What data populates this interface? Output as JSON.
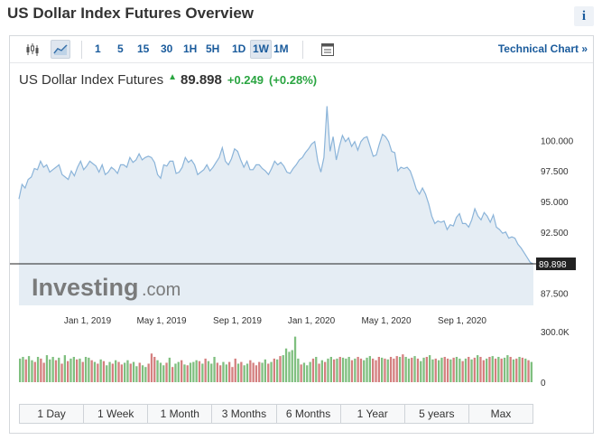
{
  "page": {
    "title": "US Dollar Index Futures Overview",
    "info_label": "i"
  },
  "toolbar": {
    "icons": [
      "candlestick-icon",
      "line-chart-icon",
      "table-icon"
    ],
    "intervals": [
      "1",
      "5",
      "15",
      "30",
      "1H",
      "5H",
      "1D",
      "1W",
      "1M"
    ],
    "active_interval": "1W",
    "technical_chart_label": "Technical Chart »"
  },
  "quote": {
    "name": "US Dollar Index Futures",
    "last": "89.898",
    "change": "+0.249",
    "change_pct": "(+0.28%)",
    "direction": "up"
  },
  "watermark": {
    "brand": "Investing",
    "suffix": ".com"
  },
  "colors": {
    "accent": "#1a5b9c",
    "up": "#2aa541",
    "line": "#8bb4d9",
    "area": "#e5edf4",
    "vol_up": "#7fbf7f",
    "vol_down": "#d47f7f"
  },
  "range_buttons": [
    "1 Day",
    "1 Week",
    "1 Month",
    "3 Months",
    "6 Months",
    "1 Year",
    "5 years",
    "Max"
  ],
  "chart_data": {
    "type": "area",
    "price": {
      "x_ticks": [
        "Jan 1, 2019",
        "May 1, 2019",
        "Sep 1, 2019",
        "Jan 1, 2020",
        "May 1, 2020",
        "Sep 1, 2020"
      ],
      "y_ticks": [
        "100.000",
        "97.500",
        "95.000",
        "92.500",
        "87.500"
      ],
      "ylim": [
        86.5,
        103.5
      ],
      "last_price_label": "89.898",
      "values": [
        95.2,
        96.4,
        96.1,
        96.8,
        97.0,
        97.7,
        97.6,
        98.3,
        97.8,
        98.0,
        97.4,
        97.6,
        97.8,
        98.0,
        97.2,
        97.0,
        96.8,
        97.5,
        97.1,
        97.8,
        98.3,
        97.6,
        97.9,
        98.3,
        98.1,
        97.9,
        97.4,
        98.0,
        97.2,
        97.4,
        97.8,
        97.6,
        97.3,
        98.0,
        98.0,
        97.8,
        98.6,
        98.2,
        98.4,
        98.9,
        98.4,
        98.6,
        98.7,
        98.6,
        98.2,
        97.2,
        96.9,
        98.0,
        97.9,
        98.3,
        98.3,
        97.3,
        97.4,
        97.8,
        98.6,
        98.2,
        98.4,
        98.0,
        97.2,
        97.4,
        97.6,
        98.0,
        97.5,
        97.8,
        98.2,
        98.6,
        99.4,
        98.3,
        98.0,
        98.5,
        99.3,
        99.1,
        98.4,
        97.8,
        98.3,
        97.6,
        97.6,
        98.0,
        98.0,
        97.7,
        97.5,
        97.2,
        97.7,
        98.3,
        98.0,
        98.2,
        97.9,
        97.4,
        97.3,
        97.7,
        98.0,
        98.4,
        98.6,
        99.0,
        99.3,
        99.7,
        99.9,
        98.3,
        97.4,
        98.6,
        102.8,
        99.1,
        100.3,
        98.4,
        99.5,
        100.4,
        99.9,
        100.2,
        99.5,
        99.9,
        99.2,
        99.9,
        100.2,
        100.3,
        99.5,
        98.7,
        98.8,
        99.7,
        100.5,
        100.3,
        99.9,
        99.1,
        99.0,
        97.5,
        97.8,
        97.7,
        97.8,
        97.5,
        96.8,
        96.0,
        95.6,
        96.1,
        95.6,
        94.8,
        93.8,
        93.2,
        93.4,
        93.3,
        93.4,
        92.7,
        93.1,
        93.0,
        93.7,
        94.0,
        93.2,
        93.2,
        92.9,
        93.5,
        94.4,
        93.8,
        93.5,
        94.1,
        93.8,
        93.3,
        93.9,
        92.9,
        92.7,
        92.4,
        92.5,
        92.0,
        92.1,
        92.0,
        91.5,
        91.2,
        90.8,
        90.4,
        90.0,
        89.9
      ]
    },
    "volume": {
      "y_ticks": [
        "300.0K",
        "0"
      ],
      "ylim": [
        0,
        300000
      ],
      "values": [
        140000,
        150000,
        135000,
        155000,
        130000,
        120000,
        150000,
        140000,
        115000,
        160000,
        135000,
        150000,
        130000,
        145000,
        110000,
        160000,
        125000,
        140000,
        150000,
        135000,
        140000,
        120000,
        150000,
        145000,
        130000,
        120000,
        110000,
        135000,
        125000,
        100000,
        120000,
        110000,
        130000,
        120000,
        105000,
        115000,
        130000,
        110000,
        120000,
        95000,
        115000,
        100000,
        90000,
        110000,
        170000,
        150000,
        130000,
        115000,
        100000,
        115000,
        145000,
        90000,
        110000,
        120000,
        130000,
        105000,
        100000,
        115000,
        120000,
        130000,
        125000,
        110000,
        140000,
        125000,
        110000,
        150000,
        115000,
        100000,
        120000,
        105000,
        120000,
        90000,
        140000,
        110000,
        120000,
        100000,
        110000,
        130000,
        115000,
        100000,
        120000,
        115000,
        135000,
        110000,
        120000,
        140000,
        135000,
        155000,
        160000,
        200000,
        180000,
        190000,
        270000,
        140000,
        105000,
        115000,
        100000,
        120000,
        140000,
        150000,
        110000,
        130000,
        120000,
        140000,
        150000,
        135000,
        140000,
        150000,
        145000,
        140000,
        150000,
        130000,
        140000,
        150000,
        140000,
        130000,
        145000,
        155000,
        140000,
        130000,
        150000,
        145000,
        140000,
        135000,
        150000,
        140000,
        155000,
        150000,
        165000,
        150000,
        140000,
        145000,
        155000,
        140000,
        125000,
        145000,
        150000,
        160000,
        135000,
        140000,
        130000,
        145000,
        150000,
        140000,
        135000,
        145000,
        150000,
        140000,
        125000,
        140000,
        150000,
        135000,
        145000,
        160000,
        150000,
        130000,
        140000,
        150000,
        155000,
        140000,
        150000,
        140000,
        145000,
        160000,
        150000,
        135000,
        140000,
        150000,
        145000,
        140000,
        130000,
        120000
      ],
      "up": [
        1,
        1,
        0,
        1,
        1,
        0,
        1,
        0,
        0,
        1,
        1,
        1,
        0,
        1,
        0,
        1,
        0,
        1,
        1,
        0,
        1,
        0,
        1,
        1,
        0,
        1,
        0,
        1,
        0,
        1,
        1,
        0,
        1,
        0,
        0,
        1,
        1,
        0,
        1,
        1,
        0,
        1,
        1,
        0,
        0,
        0,
        1,
        1,
        1,
        0,
        1,
        0,
        1,
        1,
        0,
        1,
        0,
        1,
        1,
        1,
        0,
        1,
        0,
        1,
        1,
        1,
        0,
        0,
        1,
        1,
        0,
        0,
        0,
        1,
        0,
        1,
        1,
        0,
        0,
        0,
        0,
        1,
        1,
        0,
        1,
        0,
        1,
        0,
        1,
        1,
        1,
        1,
        1,
        1,
        0,
        1,
        1,
        1,
        0,
        1,
        0,
        1,
        0,
        1,
        1,
        0,
        1,
        0,
        1,
        1,
        1,
        0,
        1,
        0,
        0,
        1,
        1,
        1,
        0,
        0,
        0,
        1,
        0,
        1,
        0,
        0,
        0,
        1,
        0,
        1,
        1,
        0,
        1,
        0,
        1,
        1,
        0,
        1,
        1,
        0,
        1,
        1,
        0,
        0,
        1,
        0,
        1,
        1,
        0,
        1,
        0,
        1,
        0,
        1,
        0,
        0,
        1,
        0,
        1,
        0,
        1,
        0,
        1,
        1,
        0,
        1,
        0,
        1,
        0,
        1,
        0,
        1,
        1,
        0,
        1,
        0
      ]
    }
  }
}
